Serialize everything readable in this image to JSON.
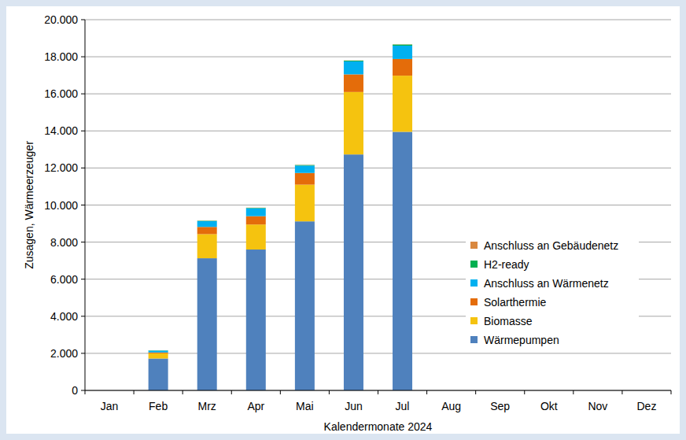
{
  "chart_data": {
    "type": "bar",
    "stacked": true,
    "x_label": "Kalendermonate 2024",
    "y_label": "Zusagen, Wärmeerzeuger",
    "categories": [
      "Jan",
      "Feb",
      "Mrz",
      "Apr",
      "Mai",
      "Jun",
      "Jul",
      "Aug",
      "Sep",
      "Okt",
      "Nov",
      "Dez"
    ],
    "series": [
      {
        "name": "Wärmepumpen",
        "color": "#4f81bd",
        "values": [
          null,
          1720,
          7130,
          7600,
          9120,
          12730,
          13950,
          null,
          null,
          null,
          null,
          null
        ]
      },
      {
        "name": "Biomasse",
        "color": "#f5c30f",
        "values": [
          null,
          280,
          1300,
          1350,
          1980,
          3370,
          3030,
          null,
          null,
          null,
          null,
          null
        ]
      },
      {
        "name": "Solarthermie",
        "color": "#e46c0a",
        "values": [
          null,
          50,
          390,
          450,
          630,
          950,
          900,
          null,
          null,
          null,
          null,
          null
        ]
      },
      {
        "name": "Anschluss an Wärmenetz",
        "color": "#00b0f0",
        "values": [
          null,
          100,
          310,
          430,
          400,
          700,
          720,
          null,
          null,
          null,
          null,
          null
        ]
      },
      {
        "name": "H2-ready",
        "color": "#00b050",
        "values": [
          null,
          10,
          20,
          20,
          30,
          40,
          60,
          null,
          null,
          null,
          null,
          null
        ]
      },
      {
        "name": "Anschluss an Gebäudenetz",
        "color": "#d9883f",
        "values": [
          null,
          5,
          10,
          10,
          10,
          10,
          10,
          null,
          null,
          null,
          null,
          null
        ]
      }
    ],
    "ylim": [
      0,
      20000
    ],
    "yticks": [
      0,
      {
        "value": 2000,
        "label": "2.000"
      },
      {
        "value": 4000,
        "label": "4.000"
      },
      {
        "value": 6000,
        "label": "6.000"
      },
      {
        "value": 8000,
        "label": "8.000"
      },
      {
        "value": 10000,
        "label": "10.000"
      },
      {
        "value": 12000,
        "label": "12.000"
      },
      {
        "value": 14000,
        "label": "14.000"
      },
      {
        "value": 16000,
        "label": "16.000"
      },
      {
        "value": 18000,
        "label": "18.000"
      },
      {
        "value": 20000,
        "label": "20.000"
      }
    ],
    "grid": true,
    "legend": "lower right"
  }
}
